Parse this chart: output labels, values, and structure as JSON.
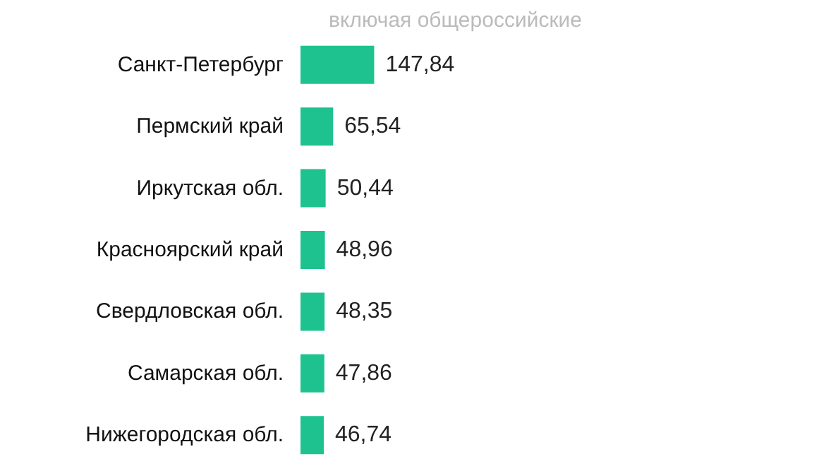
{
  "chart_data": {
    "type": "bar",
    "orientation": "horizontal",
    "subtitle": "включая общероссийские",
    "categories": [
      "Санкт-Петербург",
      "Пермский край",
      "Иркутская обл.",
      "Красноярский край",
      "Свердловская обл.",
      "Самарская обл.",
      "Нижегородская обл."
    ],
    "values": [
      147.84,
      65.54,
      50.44,
      48.96,
      48.35,
      47.86,
      46.74
    ],
    "value_labels": [
      "147,84",
      "65,54",
      "50,44",
      "48,96",
      "48,35",
      "47,86",
      "46,74"
    ],
    "color": "#1ec28f"
  }
}
